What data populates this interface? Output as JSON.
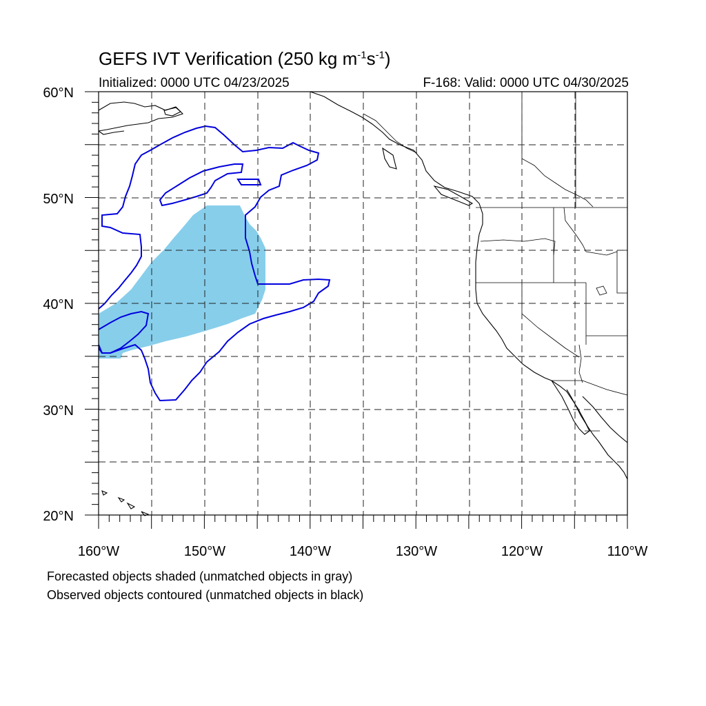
{
  "header": {
    "title_main": "GEFS IVT Verification (250 kg m",
    "title_exp1": "-1",
    "title_mid": "s",
    "title_exp2": "-1",
    "title_end": ")",
    "initialized": "Initialized: 0000 UTC 04/23/2025",
    "valid": "F-168: Valid: 0000 UTC 04/30/2025"
  },
  "axes": {
    "lat_labels": [
      "60°N",
      "50°N",
      "40°N",
      "30°N",
      "20°N"
    ],
    "lon_labels": [
      "160°W",
      "150°W",
      "140°W",
      "130°W",
      "120°W",
      "110°W"
    ],
    "lat_range": [
      20,
      60
    ],
    "lon_range": [
      -160,
      -110
    ],
    "grid": "dashed, every 5 degrees"
  },
  "legend": {
    "line1": "Forecasted objects shaded (unmatched objects in gray)",
    "line2": "Observed objects contoured (unmatched objects in black)"
  },
  "colors": {
    "forecast_fill": "#87ceeb",
    "observed_contour": "#0000dd",
    "coastline": "#000000"
  }
}
